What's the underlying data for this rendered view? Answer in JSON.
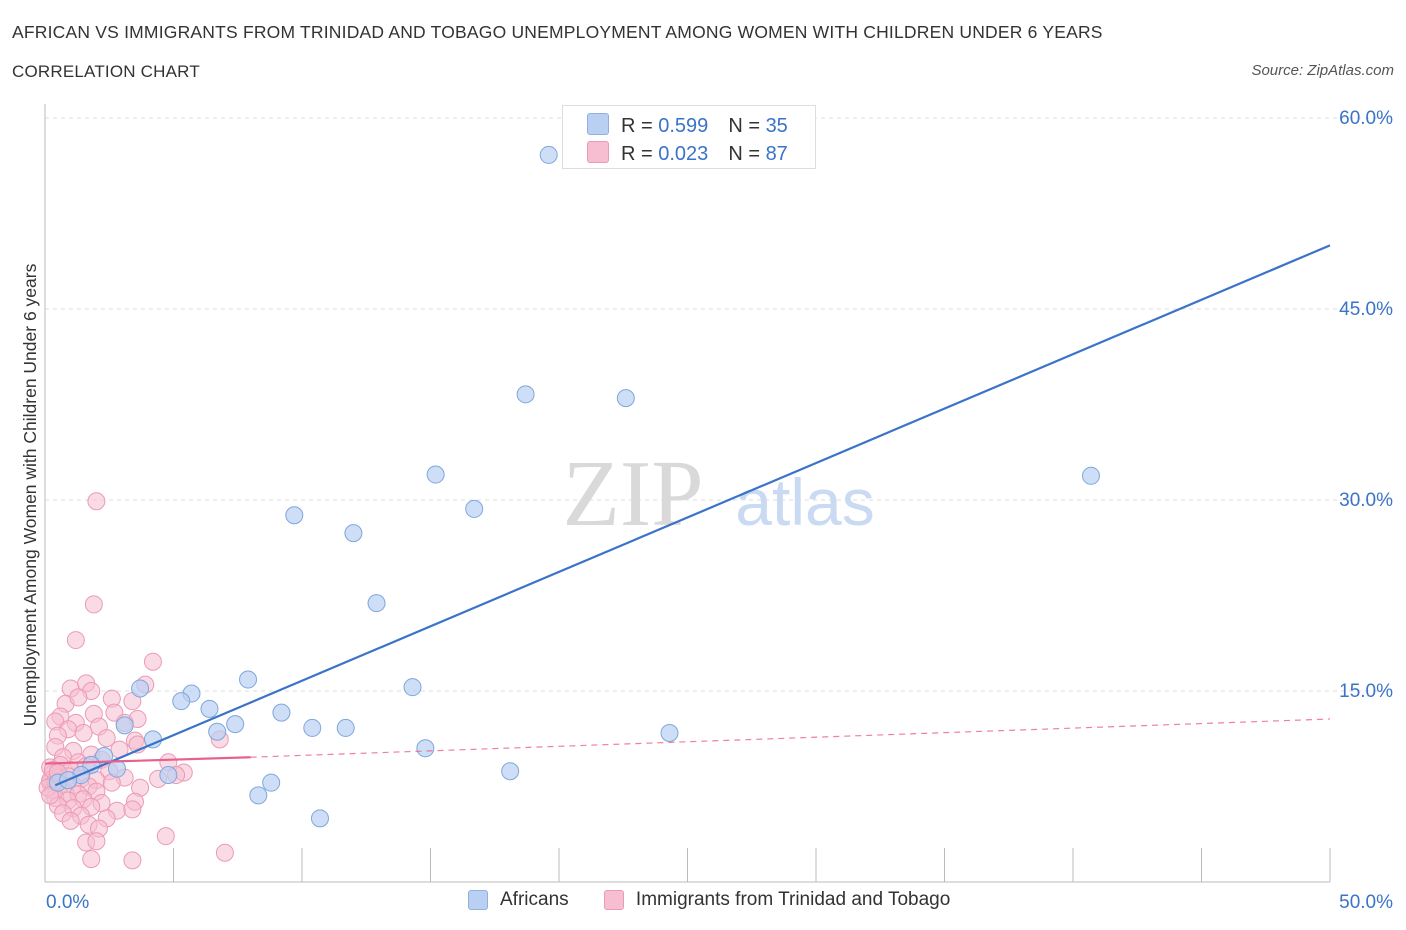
{
  "title": "AFRICAN VS IMMIGRANTS FROM TRINIDAD AND TOBAGO UNEMPLOYMENT AMONG WOMEN WITH CHILDREN UNDER 6 YEARS",
  "subtitle": "CORRELATION CHART",
  "source": "Source: ZipAtlas.com",
  "watermark": {
    "zip": "ZIP",
    "atlas": "atlas"
  },
  "colors": {
    "blue": "#3a73c8",
    "blue_fill": "#b9d0f2",
    "pink": "#e8608c",
    "pink_fill": "#f6bed0",
    "grid": "#dddddd",
    "axis_label": "#3a73c8"
  },
  "legend_top": [
    {
      "r_label": "R = ",
      "r_value": "0.599",
      "n_label": "N = ",
      "n_value": "35"
    },
    {
      "r_label": "R = ",
      "r_value": "0.023",
      "n_label": "N = ",
      "n_value": "87"
    }
  ],
  "legend_bottom": [
    "Africans",
    "Immigrants from Trinidad and Tobago"
  ],
  "chart_data": {
    "type": "scatter",
    "title": "AFRICAN VS IMMIGRANTS FROM TRINIDAD AND TOBAGO UNEMPLOYMENT AMONG WOMEN WITH CHILDREN UNDER 6 YEARS",
    "xlabel": "",
    "ylabel": "Unemployment Among Women with Children Under 6 years",
    "xlim": [
      0,
      50
    ],
    "ylim": [
      0,
      60
    ],
    "x_tick_labels": [
      "0.0%",
      "50.0%"
    ],
    "y_ticks": [
      15,
      30,
      45,
      60
    ],
    "y_tick_labels": [
      "15.0%",
      "30.0%",
      "45.0%",
      "60.0%"
    ],
    "series": [
      {
        "name": "Africans",
        "points": [
          [
            19.6,
            57.1
          ],
          [
            18.7,
            38.3
          ],
          [
            22.6,
            38.0
          ],
          [
            15.2,
            32.0
          ],
          [
            40.7,
            31.9
          ],
          [
            9.7,
            28.8
          ],
          [
            16.7,
            29.3
          ],
          [
            12.0,
            27.4
          ],
          [
            12.9,
            21.9
          ],
          [
            7.9,
            15.9
          ],
          [
            14.3,
            15.3
          ],
          [
            3.7,
            15.2
          ],
          [
            5.7,
            14.8
          ],
          [
            5.3,
            14.2
          ],
          [
            6.4,
            13.6
          ],
          [
            9.2,
            13.3
          ],
          [
            7.4,
            12.4
          ],
          [
            10.4,
            12.1
          ],
          [
            11.7,
            12.1
          ],
          [
            6.7,
            11.8
          ],
          [
            24.3,
            11.7
          ],
          [
            3.1,
            12.3
          ],
          [
            4.2,
            11.2
          ],
          [
            14.8,
            10.5
          ],
          [
            2.3,
            9.9
          ],
          [
            1.8,
            9.2
          ],
          [
            2.8,
            8.9
          ],
          [
            18.1,
            8.7
          ],
          [
            4.8,
            8.4
          ],
          [
            1.4,
            8.4
          ],
          [
            0.5,
            7.8
          ],
          [
            0.9,
            8.0
          ],
          [
            8.8,
            7.8
          ],
          [
            8.3,
            6.8
          ],
          [
            10.7,
            5.0
          ]
        ],
        "trend": [
          [
            0.4,
            7.6
          ],
          [
            50,
            50.0
          ]
        ]
      },
      {
        "name": "Immigrants from Trinidad and Tobago",
        "points": [
          [
            2.0,
            29.9
          ],
          [
            1.9,
            21.8
          ],
          [
            1.2,
            19.0
          ],
          [
            4.2,
            17.3
          ],
          [
            1.0,
            15.2
          ],
          [
            1.6,
            15.6
          ],
          [
            1.8,
            15.0
          ],
          [
            3.9,
            15.5
          ],
          [
            0.8,
            14.0
          ],
          [
            2.6,
            14.4
          ],
          [
            3.4,
            14.2
          ],
          [
            0.6,
            13.0
          ],
          [
            1.3,
            14.5
          ],
          [
            1.9,
            13.2
          ],
          [
            2.7,
            13.3
          ],
          [
            3.6,
            12.8
          ],
          [
            0.4,
            12.6
          ],
          [
            1.2,
            12.5
          ],
          [
            0.9,
            12.0
          ],
          [
            2.1,
            12.2
          ],
          [
            3.1,
            12.5
          ],
          [
            0.5,
            11.5
          ],
          [
            1.5,
            11.7
          ],
          [
            2.4,
            11.3
          ],
          [
            3.5,
            11.1
          ],
          [
            6.8,
            11.2
          ],
          [
            0.4,
            10.6
          ],
          [
            1.1,
            10.3
          ],
          [
            1.8,
            10.0
          ],
          [
            2.9,
            10.4
          ],
          [
            3.6,
            10.8
          ],
          [
            0.7,
            9.8
          ],
          [
            1.3,
            9.4
          ],
          [
            2.2,
            9.6
          ],
          [
            4.8,
            9.4
          ],
          [
            0.2,
            9.0
          ],
          [
            0.6,
            9.2
          ],
          [
            1.0,
            8.8
          ],
          [
            1.6,
            9.1
          ],
          [
            2.5,
            8.7
          ],
          [
            5.4,
            8.6
          ],
          [
            0.3,
            8.5
          ],
          [
            0.5,
            8.2
          ],
          [
            0.9,
            8.3
          ],
          [
            1.4,
            8.1
          ],
          [
            2.0,
            8.0
          ],
          [
            3.1,
            8.2
          ],
          [
            4.4,
            8.1
          ],
          [
            5.1,
            8.4
          ],
          [
            0.2,
            7.8
          ],
          [
            0.6,
            7.7
          ],
          [
            1.1,
            7.6
          ],
          [
            1.7,
            7.5
          ],
          [
            2.6,
            7.8
          ],
          [
            3.7,
            7.4
          ],
          [
            0.3,
            7.2
          ],
          [
            0.8,
            7.0
          ],
          [
            1.3,
            6.9
          ],
          [
            2.0,
            7.1
          ],
          [
            0.4,
            6.6
          ],
          [
            0.9,
            6.4
          ],
          [
            1.5,
            6.5
          ],
          [
            2.2,
            6.2
          ],
          [
            3.5,
            6.3
          ],
          [
            0.5,
            6.0
          ],
          [
            1.1,
            5.8
          ],
          [
            1.8,
            5.9
          ],
          [
            2.8,
            5.6
          ],
          [
            0.7,
            5.4
          ],
          [
            1.4,
            5.2
          ],
          [
            2.4,
            5.0
          ],
          [
            3.4,
            5.7
          ],
          [
            1.0,
            4.8
          ],
          [
            1.7,
            4.5
          ],
          [
            2.1,
            4.2
          ],
          [
            4.7,
            3.6
          ],
          [
            1.6,
            3.1
          ],
          [
            2.0,
            3.2
          ],
          [
            1.8,
            1.8
          ],
          [
            3.4,
            1.7
          ],
          [
            7.0,
            2.3
          ],
          [
            0.2,
            8.0
          ],
          [
            0.4,
            7.9
          ],
          [
            0.3,
            8.8
          ],
          [
            0.1,
            7.4
          ],
          [
            0.2,
            6.8
          ],
          [
            0.5,
            8.6
          ]
        ],
        "trend_solid": [
          [
            0,
            9.3
          ],
          [
            8,
            9.8
          ]
        ],
        "trend_dashed": [
          [
            8,
            9.8
          ],
          [
            50,
            12.8
          ]
        ]
      }
    ]
  }
}
